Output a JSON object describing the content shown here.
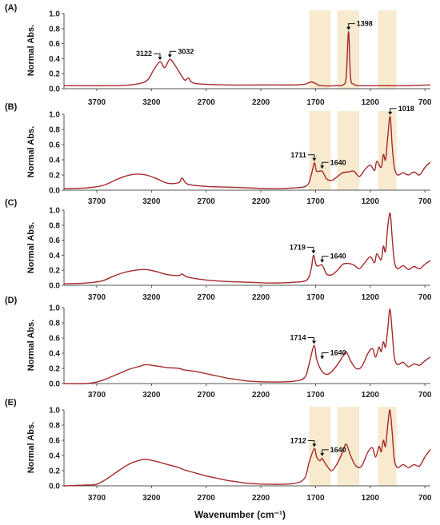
{
  "figure": {
    "xlabel": "Wavenumber (cm⁻¹)",
    "ylabel": "Normal Abs.",
    "colors": {
      "line": "#a52a2a",
      "band": "#f5deb3",
      "axis": "#555555"
    }
  },
  "chart_data": [
    {
      "type": "line",
      "panel_label": "(A)",
      "xlim": [
        4000,
        650
      ],
      "x_reversed": true,
      "xticks": [
        3700,
        3200,
        2700,
        2200,
        1700,
        1200,
        700
      ],
      "ylim": [
        0,
        1.0
      ],
      "yticks": [
        "0.0",
        "0.2",
        "0.4",
        "0.6",
        "0.8",
        "1.0"
      ],
      "highlight_bands": [
        [
          1760,
          1560
        ],
        [
          1500,
          1300
        ],
        [
          1130,
          960
        ]
      ],
      "series": [
        {
          "x": [
            4000,
            3600,
            3400,
            3250,
            3180,
            3122,
            3080,
            3032,
            2980,
            2900,
            2860,
            2800,
            2500,
            2100,
            1900,
            1800,
            1740,
            1700,
            1650,
            1500,
            1450,
            1420,
            1398,
            1380,
            1350,
            1300,
            1100,
            900,
            650
          ],
          "y": [
            0.04,
            0.04,
            0.05,
            0.1,
            0.25,
            0.36,
            0.28,
            0.39,
            0.3,
            0.12,
            0.14,
            0.07,
            0.05,
            0.05,
            0.05,
            0.06,
            0.09,
            0.07,
            0.04,
            0.04,
            0.05,
            0.15,
            0.76,
            0.15,
            0.06,
            0.04,
            0.04,
            0.04,
            0.05
          ]
        }
      ],
      "annotations": [
        {
          "label": "3122",
          "x": 3122,
          "y": 0.36
        },
        {
          "label": "3032",
          "x": 3032,
          "y": 0.39
        },
        {
          "label": "1398",
          "x": 1398,
          "y": 0.76
        }
      ]
    },
    {
      "type": "line",
      "panel_label": "(B)",
      "xlim": [
        4000,
        650
      ],
      "x_reversed": true,
      "xticks": [
        3700,
        3200,
        2700,
        2200,
        1700,
        1200,
        700
      ],
      "ylim": [
        0,
        1.0
      ],
      "yticks": [
        "0.0",
        "0.2",
        "0.4",
        "0.6",
        "0.8",
        "1.0"
      ],
      "highlight_bands": [
        [
          1760,
          1560
        ],
        [
          1500,
          1300
        ],
        [
          1130,
          960
        ]
      ],
      "series": [
        {
          "x": [
            4000,
            3800,
            3650,
            3550,
            3450,
            3350,
            3250,
            3150,
            3050,
            2950,
            2920,
            2870,
            2700,
            2500,
            2300,
            2100,
            1900,
            1780,
            1740,
            1711,
            1690,
            1640,
            1600,
            1550,
            1500,
            1450,
            1400,
            1350,
            1300,
            1250,
            1200,
            1160,
            1140,
            1100,
            1080,
            1060,
            1040,
            1018,
            1000,
            980,
            950,
            900,
            850,
            800,
            750,
            700,
            650
          ],
          "y": [
            0.02,
            0.03,
            0.06,
            0.12,
            0.18,
            0.21,
            0.2,
            0.15,
            0.09,
            0.1,
            0.16,
            0.08,
            0.05,
            0.04,
            0.03,
            0.02,
            0.03,
            0.06,
            0.2,
            0.36,
            0.25,
            0.25,
            0.15,
            0.13,
            0.18,
            0.23,
            0.24,
            0.25,
            0.18,
            0.27,
            0.33,
            0.26,
            0.38,
            0.3,
            0.47,
            0.4,
            0.7,
            0.97,
            0.6,
            0.3,
            0.2,
            0.23,
            0.2,
            0.24,
            0.2,
            0.3,
            0.37
          ]
        }
      ],
      "annotations": [
        {
          "label": "1711",
          "x": 1711,
          "y": 0.36
        },
        {
          "label": "1640",
          "x": 1640,
          "y": 0.26
        },
        {
          "label": "1018",
          "x": 1018,
          "y": 0.97
        }
      ]
    },
    {
      "type": "line",
      "panel_label": "(C)",
      "xlim": [
        4000,
        650
      ],
      "x_reversed": true,
      "xticks": [
        3700,
        3200,
        2700,
        2200,
        1700,
        1200,
        700
      ],
      "ylim": [
        0,
        1.0
      ],
      "yticks": [
        "0.0",
        "0.2",
        "0.4",
        "0.6",
        "0.8",
        "1.0"
      ],
      "highlight_bands": [],
      "series": [
        {
          "x": [
            4000,
            3800,
            3650,
            3550,
            3450,
            3350,
            3250,
            3150,
            3050,
            2950,
            2920,
            2870,
            2700,
            2500,
            2300,
            2100,
            1900,
            1780,
            1740,
            1719,
            1690,
            1640,
            1600,
            1550,
            1500,
            1450,
            1400,
            1350,
            1300,
            1250,
            1200,
            1160,
            1140,
            1100,
            1080,
            1060,
            1040,
            1018,
            1000,
            980,
            950,
            900,
            850,
            800,
            750,
            700,
            650
          ],
          "y": [
            0.02,
            0.03,
            0.06,
            0.12,
            0.17,
            0.2,
            0.21,
            0.18,
            0.14,
            0.13,
            0.15,
            0.11,
            0.07,
            0.05,
            0.04,
            0.03,
            0.04,
            0.07,
            0.22,
            0.4,
            0.26,
            0.27,
            0.15,
            0.14,
            0.2,
            0.28,
            0.29,
            0.27,
            0.22,
            0.3,
            0.38,
            0.3,
            0.42,
            0.34,
            0.52,
            0.45,
            0.78,
            0.96,
            0.65,
            0.32,
            0.22,
            0.26,
            0.21,
            0.25,
            0.22,
            0.28,
            0.33
          ]
        }
      ],
      "annotations": [
        {
          "label": "1719",
          "x": 1719,
          "y": 0.4
        },
        {
          "label": "1640",
          "x": 1640,
          "y": 0.28
        }
      ]
    },
    {
      "type": "line",
      "panel_label": "(D)",
      "xlim": [
        4000,
        650
      ],
      "x_reversed": true,
      "xticks": [
        3700,
        3200,
        2700,
        2200,
        1700,
        1200,
        700
      ],
      "ylim": [
        0,
        1.0
      ],
      "yticks": [
        "0.0",
        "0.2",
        "0.4",
        "0.6",
        "0.8",
        "1.0"
      ],
      "highlight_bands": [],
      "series": [
        {
          "x": [
            4000,
            3800,
            3700,
            3600,
            3500,
            3400,
            3300,
            3250,
            3150,
            3050,
            2950,
            2900,
            2800,
            2700,
            2600,
            2500,
            2400,
            2300,
            2100,
            1900,
            1800,
            1760,
            1714,
            1690,
            1650,
            1600,
            1550,
            1500,
            1450,
            1420,
            1380,
            1330,
            1280,
            1220,
            1180,
            1150,
            1120,
            1100,
            1080,
            1060,
            1040,
            1020,
            1000,
            980,
            950,
            900,
            850,
            800,
            750,
            700,
            650
          ],
          "y": [
            0.0,
            0.0,
            0.02,
            0.07,
            0.13,
            0.19,
            0.23,
            0.25,
            0.23,
            0.21,
            0.2,
            0.18,
            0.16,
            0.13,
            0.1,
            0.07,
            0.05,
            0.03,
            0.02,
            0.03,
            0.08,
            0.25,
            0.5,
            0.32,
            0.18,
            0.12,
            0.16,
            0.25,
            0.36,
            0.42,
            0.3,
            0.2,
            0.22,
            0.4,
            0.46,
            0.35,
            0.48,
            0.42,
            0.55,
            0.48,
            0.72,
            0.98,
            0.7,
            0.35,
            0.25,
            0.28,
            0.22,
            0.26,
            0.24,
            0.3,
            0.35
          ]
        }
      ],
      "annotations": [
        {
          "label": "1714",
          "x": 1714,
          "y": 0.5
        },
        {
          "label": "1640",
          "x": 1640,
          "y": 0.3
        }
      ]
    },
    {
      "type": "line",
      "panel_label": "(E)",
      "xlim": [
        4000,
        650
      ],
      "x_reversed": true,
      "xticks": [
        3700,
        3200,
        2700,
        2200,
        1700,
        1200,
        700
      ],
      "ylim": [
        0,
        1.0
      ],
      "yticks": [
        "0.0",
        "0.2",
        "0.4",
        "0.6",
        "0.8",
        "1.0"
      ],
      "highlight_bands": [
        [
          1760,
          1560
        ],
        [
          1500,
          1300
        ],
        [
          1130,
          960
        ]
      ],
      "series": [
        {
          "x": [
            4000,
            3800,
            3700,
            3600,
            3500,
            3400,
            3300,
            3250,
            3150,
            3100,
            3050,
            2950,
            2900,
            2800,
            2700,
            2600,
            2500,
            2400,
            2300,
            2100,
            1900,
            1800,
            1760,
            1712,
            1690,
            1660,
            1640,
            1600,
            1550,
            1500,
            1450,
            1420,
            1380,
            1330,
            1280,
            1220,
            1180,
            1150,
            1120,
            1100,
            1080,
            1060,
            1040,
            1020,
            1000,
            980,
            950,
            900,
            850,
            800,
            750,
            700,
            650
          ],
          "y": [
            0.0,
            0.01,
            0.02,
            0.1,
            0.2,
            0.29,
            0.34,
            0.35,
            0.32,
            0.3,
            0.28,
            0.24,
            0.21,
            0.17,
            0.13,
            0.1,
            0.07,
            0.05,
            0.03,
            0.02,
            0.03,
            0.1,
            0.3,
            0.49,
            0.38,
            0.33,
            0.36,
            0.27,
            0.2,
            0.3,
            0.45,
            0.55,
            0.4,
            0.26,
            0.26,
            0.45,
            0.5,
            0.38,
            0.52,
            0.45,
            0.6,
            0.52,
            0.8,
            1.0,
            0.72,
            0.35,
            0.24,
            0.28,
            0.24,
            0.28,
            0.26,
            0.38,
            0.48
          ]
        }
      ],
      "annotations": [
        {
          "label": "1712",
          "x": 1712,
          "y": 0.49
        },
        {
          "label": "1640",
          "x": 1640,
          "y": 0.37
        }
      ]
    }
  ]
}
